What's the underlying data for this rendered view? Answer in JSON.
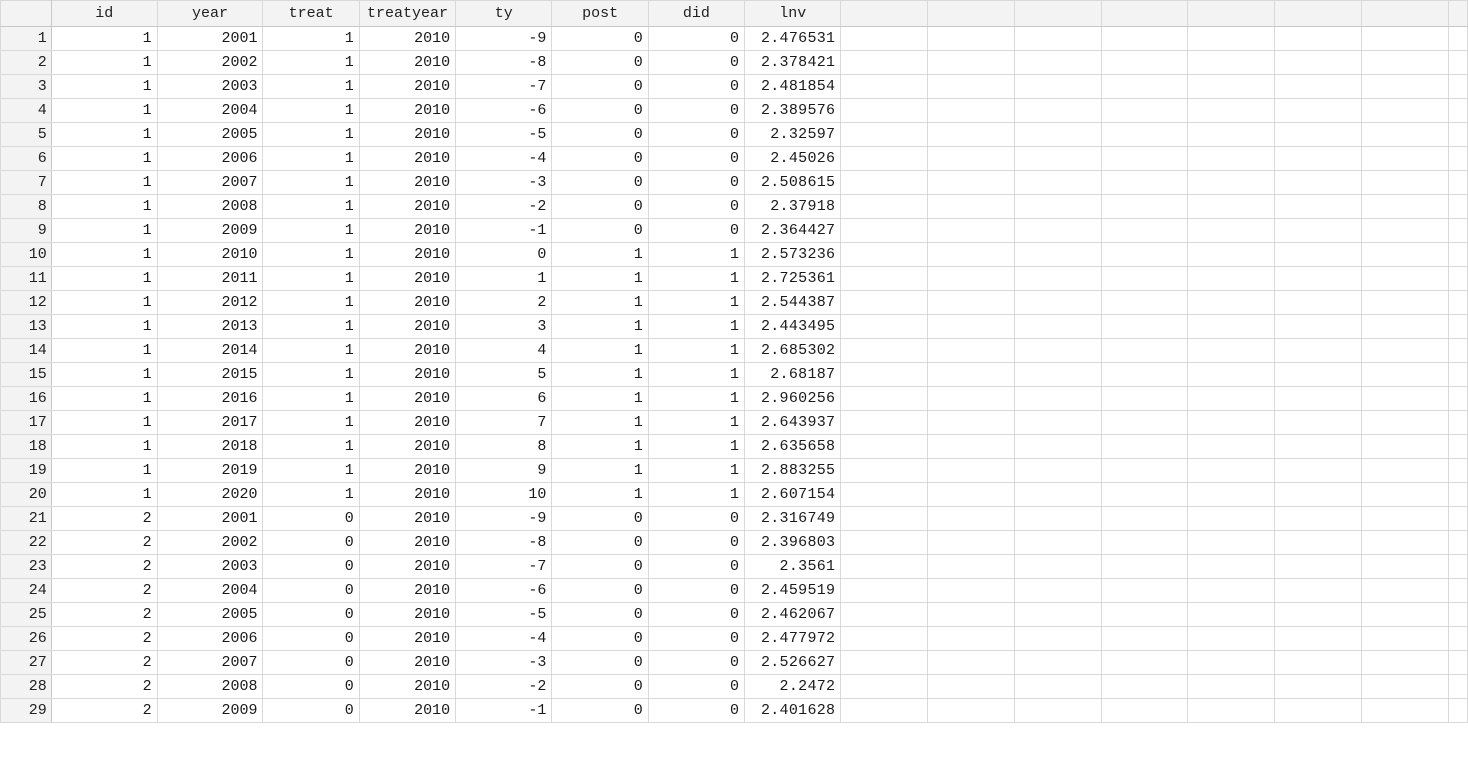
{
  "columns": [
    "id",
    "year",
    "treat",
    "treatyear",
    "ty",
    "post",
    "did",
    "lnv"
  ],
  "rows": [
    [
      "1",
      "1",
      "2001",
      "1",
      "2010",
      "-9",
      "0",
      "0",
      "2.476531"
    ],
    [
      "2",
      "1",
      "2002",
      "1",
      "2010",
      "-8",
      "0",
      "0",
      "2.378421"
    ],
    [
      "3",
      "1",
      "2003",
      "1",
      "2010",
      "-7",
      "0",
      "0",
      "2.481854"
    ],
    [
      "4",
      "1",
      "2004",
      "1",
      "2010",
      "-6",
      "0",
      "0",
      "2.389576"
    ],
    [
      "5",
      "1",
      "2005",
      "1",
      "2010",
      "-5",
      "0",
      "0",
      "2.32597"
    ],
    [
      "6",
      "1",
      "2006",
      "1",
      "2010",
      "-4",
      "0",
      "0",
      "2.45026"
    ],
    [
      "7",
      "1",
      "2007",
      "1",
      "2010",
      "-3",
      "0",
      "0",
      "2.508615"
    ],
    [
      "8",
      "1",
      "2008",
      "1",
      "2010",
      "-2",
      "0",
      "0",
      "2.37918"
    ],
    [
      "9",
      "1",
      "2009",
      "1",
      "2010",
      "-1",
      "0",
      "0",
      "2.364427"
    ],
    [
      "10",
      "1",
      "2010",
      "1",
      "2010",
      "0",
      "1",
      "1",
      "2.573236"
    ],
    [
      "11",
      "1",
      "2011",
      "1",
      "2010",
      "1",
      "1",
      "1",
      "2.725361"
    ],
    [
      "12",
      "1",
      "2012",
      "1",
      "2010",
      "2",
      "1",
      "1",
      "2.544387"
    ],
    [
      "13",
      "1",
      "2013",
      "1",
      "2010",
      "3",
      "1",
      "1",
      "2.443495"
    ],
    [
      "14",
      "1",
      "2014",
      "1",
      "2010",
      "4",
      "1",
      "1",
      "2.685302"
    ],
    [
      "15",
      "1",
      "2015",
      "1",
      "2010",
      "5",
      "1",
      "1",
      "2.68187"
    ],
    [
      "16",
      "1",
      "2016",
      "1",
      "2010",
      "6",
      "1",
      "1",
      "2.960256"
    ],
    [
      "17",
      "1",
      "2017",
      "1",
      "2010",
      "7",
      "1",
      "1",
      "2.643937"
    ],
    [
      "18",
      "1",
      "2018",
      "1",
      "2010",
      "8",
      "1",
      "1",
      "2.635658"
    ],
    [
      "19",
      "1",
      "2019",
      "1",
      "2010",
      "9",
      "1",
      "1",
      "2.883255"
    ],
    [
      "20",
      "1",
      "2020",
      "1",
      "2010",
      "10",
      "1",
      "1",
      "2.607154"
    ],
    [
      "21",
      "2",
      "2001",
      "0",
      "2010",
      "-9",
      "0",
      "0",
      "2.316749"
    ],
    [
      "22",
      "2",
      "2002",
      "0",
      "2010",
      "-8",
      "0",
      "0",
      "2.396803"
    ],
    [
      "23",
      "2",
      "2003",
      "0",
      "2010",
      "-7",
      "0",
      "0",
      "2.3561"
    ],
    [
      "24",
      "2",
      "2004",
      "0",
      "2010",
      "-6",
      "0",
      "0",
      "2.459519"
    ],
    [
      "25",
      "2",
      "2005",
      "0",
      "2010",
      "-5",
      "0",
      "0",
      "2.462067"
    ],
    [
      "26",
      "2",
      "2006",
      "0",
      "2010",
      "-4",
      "0",
      "0",
      "2.477972"
    ],
    [
      "27",
      "2",
      "2007",
      "0",
      "2010",
      "-3",
      "0",
      "0",
      "2.526627"
    ],
    [
      "28",
      "2",
      "2008",
      "0",
      "2010",
      "-2",
      "0",
      "0",
      "2.2472"
    ],
    [
      "29",
      "2",
      "2009",
      "0",
      "2010",
      "-1",
      "0",
      "0",
      "2.401628"
    ]
  ]
}
